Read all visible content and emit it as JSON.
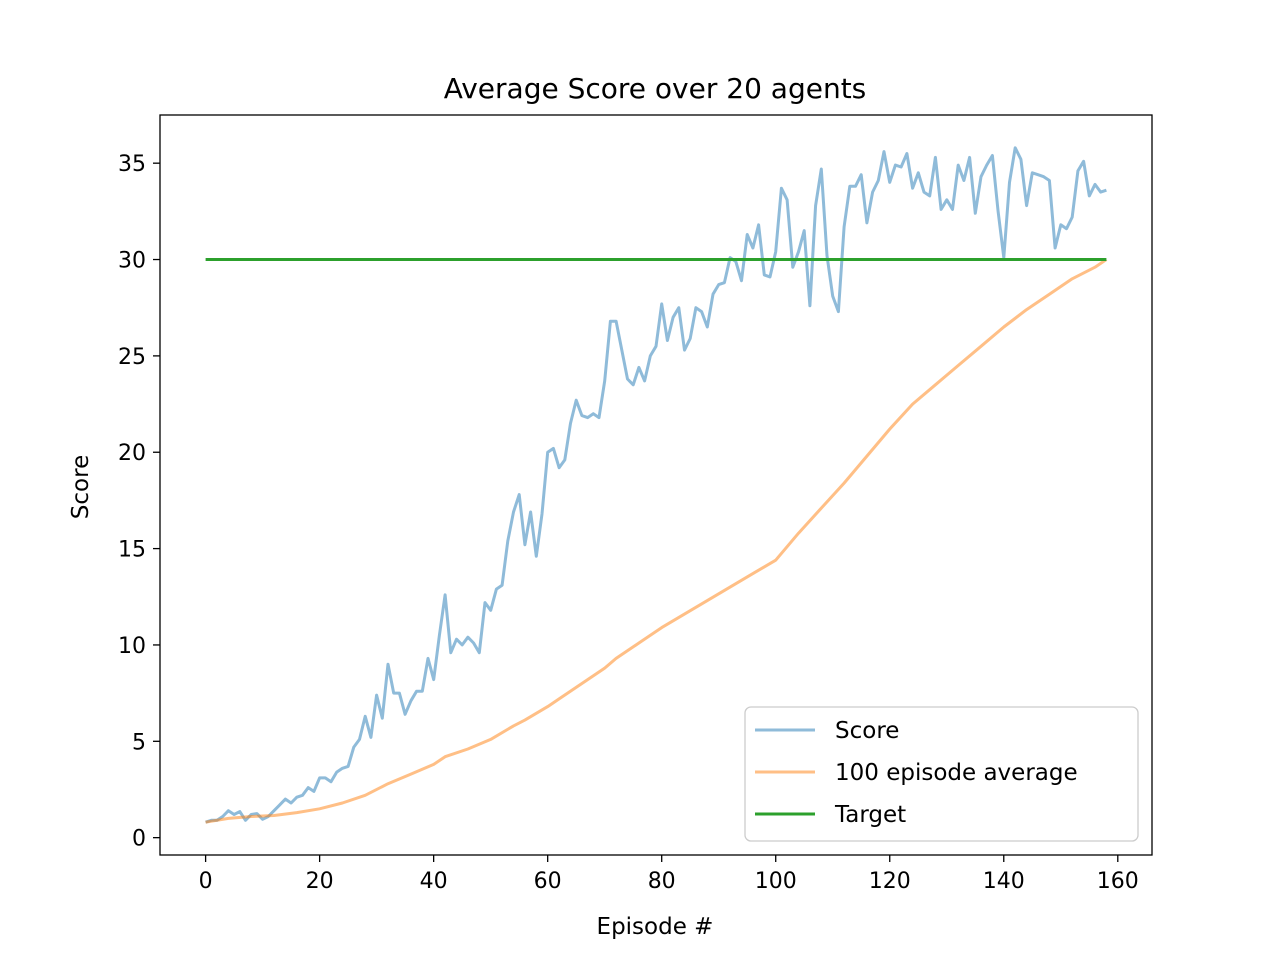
{
  "chart_data": {
    "type": "line",
    "title": "Average Score over 20 agents",
    "xlabel": "Episode #",
    "ylabel": "Score",
    "xlim": [
      -8,
      166
    ],
    "ylim": [
      -0.9,
      37.5
    ],
    "xticks": [
      0,
      20,
      40,
      60,
      80,
      100,
      120,
      140,
      160
    ],
    "yticks": [
      0,
      5,
      10,
      15,
      20,
      25,
      30,
      35
    ],
    "grid": false,
    "legend_position": "lower-right",
    "series": [
      {
        "name": "Score",
        "color": "#1f77b4",
        "alpha": 0.5,
        "values": [
          0.8,
          0.9,
          0.9,
          1.1,
          1.4,
          1.2,
          1.35,
          0.9,
          1.2,
          1.25,
          0.95,
          1.1,
          1.4,
          1.7,
          2.0,
          1.8,
          2.1,
          2.2,
          2.6,
          2.4,
          3.1,
          3.1,
          2.9,
          3.4,
          3.6,
          3.7,
          4.7,
          5.1,
          6.3,
          5.2,
          7.4,
          6.2,
          9.0,
          7.5,
          7.5,
          6.4,
          7.1,
          7.6,
          7.6,
          9.3,
          8.2,
          10.5,
          12.6,
          9.6,
          10.3,
          10.0,
          10.4,
          10.1,
          9.6,
          12.2,
          11.8,
          12.9,
          13.1,
          15.4,
          16.9,
          17.8,
          15.2,
          16.9,
          14.6,
          16.8,
          20.0,
          20.2,
          19.2,
          19.6,
          21.5,
          22.7,
          21.9,
          21.8,
          22.0,
          21.8,
          23.7,
          26.8,
          26.8,
          25.3,
          23.8,
          23.5,
          24.4,
          23.7,
          25.0,
          25.5,
          27.7,
          25.8,
          27.0,
          27.5,
          25.3,
          25.9,
          27.5,
          27.3,
          26.5,
          28.2,
          28.7,
          28.8,
          30.1,
          29.9,
          28.9,
          31.3,
          30.6,
          31.8,
          29.2,
          29.1,
          30.4,
          33.7,
          33.1,
          29.6,
          30.4,
          31.5,
          27.6,
          32.8,
          34.7,
          30.2,
          28.1,
          27.3,
          31.7,
          33.8,
          33.8,
          34.4,
          31.9,
          33.5,
          34.1,
          35.6,
          34.0,
          34.9,
          34.8,
          35.5,
          33.7,
          34.5,
          33.5,
          33.3,
          35.3,
          32.6,
          33.1,
          32.6,
          34.9,
          34.1,
          35.3,
          32.4,
          34.3,
          34.9,
          35.4,
          32.5,
          30.1,
          34.0,
          35.8,
          35.2,
          32.8,
          34.5,
          34.4,
          34.3,
          34.1,
          30.6,
          31.8,
          31.6,
          32.2,
          34.6,
          35.1,
          33.3,
          33.9,
          33.5,
          33.6
        ]
      },
      {
        "name": "100 episode average",
        "color": "#ff7f0e",
        "alpha": 0.5,
        "x": [
          0,
          4,
          8,
          12,
          16,
          20,
          24,
          28,
          32,
          36,
          40,
          42,
          46,
          50,
          54,
          56,
          60,
          62,
          66,
          70,
          72,
          76,
          80,
          84,
          88,
          92,
          96,
          100,
          104,
          108,
          112,
          116,
          120,
          124,
          128,
          132,
          136,
          140,
          144,
          148,
          152,
          156,
          158
        ],
        "values": [
          0.8,
          1.0,
          1.1,
          1.15,
          1.3,
          1.5,
          1.8,
          2.2,
          2.8,
          3.3,
          3.8,
          4.2,
          4.6,
          5.1,
          5.8,
          6.1,
          6.8,
          7.2,
          8.0,
          8.8,
          9.3,
          10.1,
          10.9,
          11.6,
          12.3,
          13.0,
          13.7,
          14.4,
          15.8,
          17.1,
          18.4,
          19.8,
          21.2,
          22.5,
          23.5,
          24.5,
          25.5,
          26.5,
          27.4,
          28.2,
          29.0,
          29.6,
          30.0
        ]
      },
      {
        "name": "Target",
        "color": "#2ca02c",
        "alpha": 1.0,
        "x": [
          0,
          158
        ],
        "values": [
          30,
          30
        ]
      }
    ]
  }
}
